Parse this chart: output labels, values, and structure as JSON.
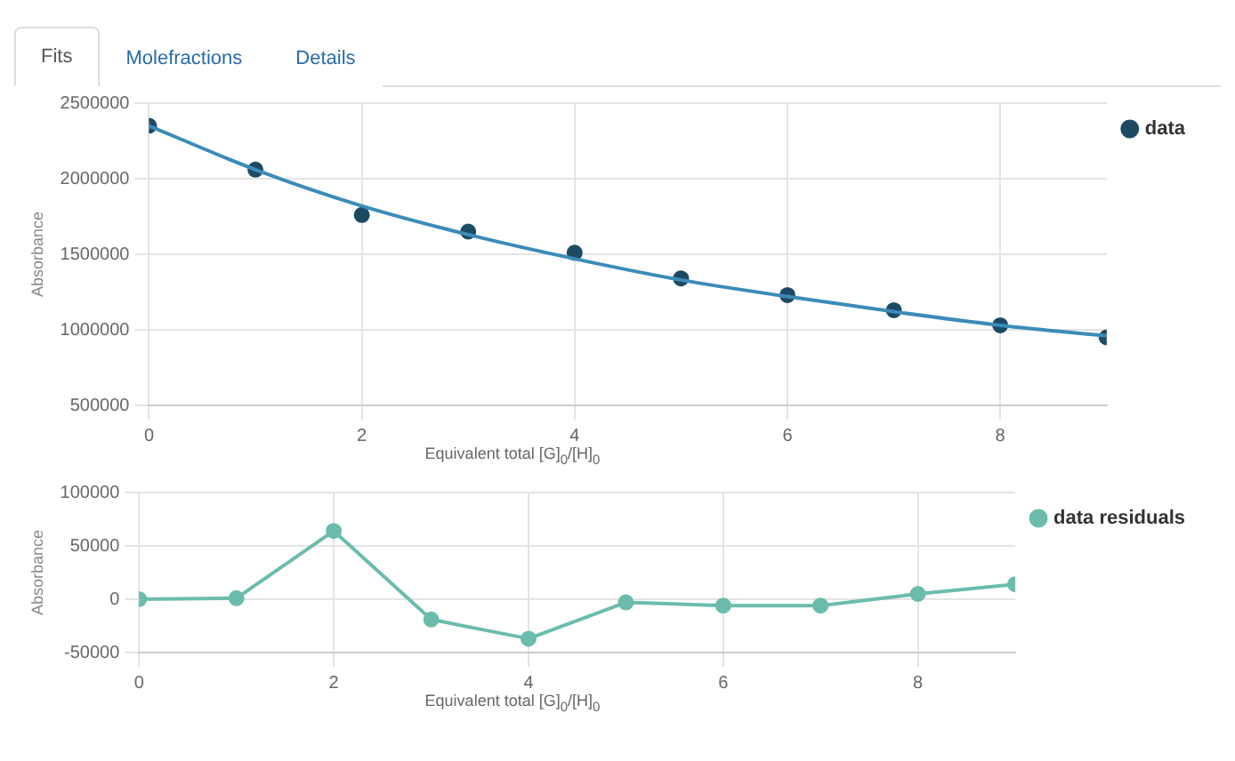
{
  "chart_data": [
    {
      "type": "other",
      "annotations": [
        "Fits",
        "Molefractions",
        "Details"
      ]
    },
    {
      "type": "scatter",
      "xlabel": "Equivalent total [G]$_{0}$/[H]$_{0}$",
      "ylabel": "Absorbance",
      "x": [
        0,
        1,
        2,
        3,
        4,
        5,
        6,
        7,
        8,
        9
      ],
      "xlim": [
        0,
        9
      ],
      "xticks": [
        0,
        2,
        4,
        6,
        8
      ],
      "ylim": [
        500000,
        2500000
      ],
      "yticks": [
        500000,
        1000000,
        1500000,
        2000000,
        2500000
      ],
      "grid": true,
      "legend": "right",
      "marker": "circle",
      "series": [
        {
          "type": "line",
          "color": "#3b8cb8",
          "marker": "none",
          "values": [
            2350000,
            2060000,
            1820000,
            1630000,
            1470000,
            1330000,
            1220000,
            1120000,
            1030000,
            960000
          ]
        },
        {
          "name": "data",
          "type": "scatter",
          "color": "#1d4a63",
          "values": [
            2350000,
            2060000,
            1760000,
            1650000,
            1510000,
            1340000,
            1230000,
            1130000,
            1030000,
            950000
          ]
        }
      ]
    },
    {
      "type": "line",
      "xlabel": "Equivalent total [G]$_{0}$/[H]$_{0}$",
      "ylabel": "Absorbance",
      "x": [
        0,
        1,
        2,
        3,
        4,
        5,
        6,
        7,
        8,
        9
      ],
      "xlim": [
        0,
        9
      ],
      "xticks": [
        0,
        2,
        4,
        6,
        8
      ],
      "ylim": [
        -50000,
        100000
      ],
      "yticks": [
        -50000,
        0,
        50000,
        100000
      ],
      "grid": true,
      "legend": "right",
      "marker": "circle",
      "series": [
        {
          "name": "data residuals",
          "color": "#6bbcad",
          "values": [
            0,
            1000,
            64000,
            -19000,
            -37000,
            -3000,
            -6000,
            -6000,
            5000,
            14000
          ]
        }
      ]
    }
  ]
}
